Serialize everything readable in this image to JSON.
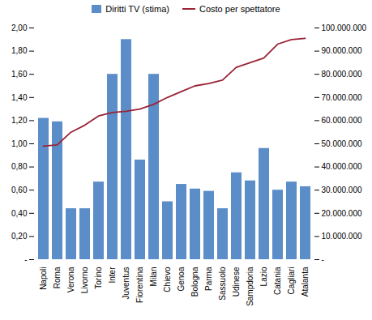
{
  "chart_data": {
    "type": "bar",
    "categories": [
      "Napoli",
      "Roma",
      "Verona",
      "Livorno",
      "Torino",
      "Inter",
      "Juventus",
      "Fiorentina",
      "Milan",
      "Chievo",
      "Genoa",
      "Bologna",
      "Parma",
      "Sassuolo",
      "Udinese",
      "Sampdoria",
      "Lazio",
      "Catania",
      "Cagliari",
      "Atalanta"
    ],
    "series": [
      {
        "name": "Diritti TV (stima)",
        "type": "bar",
        "color": "#5B8DC8",
        "values": [
          1.22,
          1.19,
          0.44,
          0.44,
          0.67,
          1.6,
          1.9,
          0.86,
          1.6,
          0.5,
          0.65,
          0.61,
          0.59,
          0.44,
          0.75,
          0.68,
          0.96,
          0.6,
          0.67,
          0.63
        ]
      },
      {
        "name": "Costo per spettatore",
        "type": "line",
        "color": "#9B2335",
        "axis": "y2",
        "values": [
          49000000,
          49500000,
          55000000,
          58000000,
          62000000,
          63500000,
          64000000,
          65000000,
          67000000,
          70000000,
          72500000,
          75000000,
          76000000,
          77500000,
          83000000,
          85000000,
          87000000,
          93000000,
          95000000,
          95500000
        ]
      }
    ],
    "ylim": [
      0,
      2.0
    ],
    "yticks": [
      {
        "value": 0,
        "label": "-"
      },
      {
        "value": 0.2,
        "label": "0,20"
      },
      {
        "value": 0.4,
        "label": "0,40"
      },
      {
        "value": 0.6,
        "label": "0,60"
      },
      {
        "value": 0.8,
        "label": "0,80"
      },
      {
        "value": 1.0,
        "label": "1,00"
      },
      {
        "value": 1.2,
        "label": "1,20"
      },
      {
        "value": 1.4,
        "label": "1,40"
      },
      {
        "value": 1.6,
        "label": "1,60"
      },
      {
        "value": 1.8,
        "label": "1,80"
      },
      {
        "value": 2.0,
        "label": "2,00"
      }
    ],
    "y2lim": [
      0,
      100000000
    ],
    "y2ticks": [
      {
        "value": 0,
        "label": "-"
      },
      {
        "value": 10000000,
        "label": "10.000.000"
      },
      {
        "value": 20000000,
        "label": "20.000.000"
      },
      {
        "value": 30000000,
        "label": "30.000.000"
      },
      {
        "value": 40000000,
        "label": "40.000.000"
      },
      {
        "value": 50000000,
        "label": "50.000.000"
      },
      {
        "value": 60000000,
        "label": "60.000.000"
      },
      {
        "value": 70000000,
        "label": "70.000.000"
      },
      {
        "value": 80000000,
        "label": "80.000.000"
      },
      {
        "value": 90000000,
        "label": "90.000.000"
      },
      {
        "value": 100000000,
        "label": "100.000.000"
      }
    ],
    "grid": false,
    "legend": "top"
  }
}
